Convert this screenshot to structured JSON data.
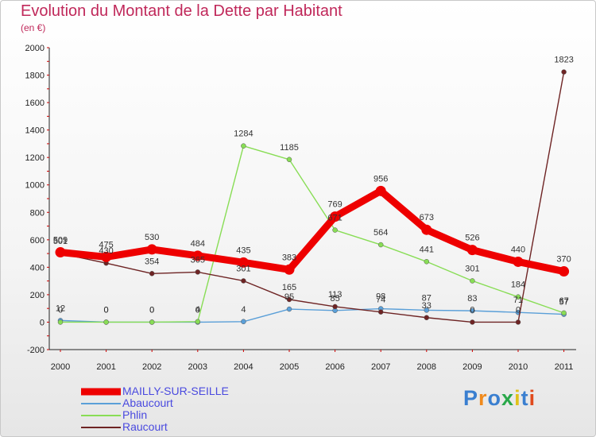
{
  "title": "Evolution du Montant de la Dette par Habitant",
  "subtitle": "(en €)",
  "logo": {
    "text": "Proxiti",
    "colors": [
      "#3a7fd0",
      "#f08a1c",
      "#3a7fd0",
      "#2aa84a",
      "#e0c21a",
      "#3a7fd0",
      "#e04a1c"
    ]
  },
  "chart_data": {
    "type": "line",
    "x": [
      "2000",
      "2001",
      "2002",
      "2003",
      "2004",
      "2005",
      "2006",
      "2007",
      "2008",
      "2009",
      "2010",
      "2011"
    ],
    "ylim": [
      -200,
      2000
    ],
    "yticks": [
      "-200",
      "0",
      "200",
      "400",
      "600",
      "800",
      "1000",
      "1200",
      "1400",
      "1600",
      "1800",
      "2000"
    ],
    "grid": false,
    "legend_position": "bottom-left",
    "series": [
      {
        "name": "MAILLY-SUR-SEILLE",
        "color": "#ee0000",
        "values": [
          509,
          475,
          530,
          484,
          435,
          383,
          769,
          956,
          673,
          526,
          440,
          370
        ],
        "labels": [
          "509",
          "475",
          "530",
          "484",
          "435",
          "383",
          "769",
          "956",
          "673",
          "526",
          "440",
          "370"
        ]
      },
      {
        "name": "Abaucourt",
        "color": "#5a9fd8",
        "values": [
          12,
          0,
          0,
          0,
          4,
          95,
          85,
          98,
          87,
          83,
          71,
          57
        ],
        "labels": [
          "12",
          "0",
          "0",
          "0",
          "4",
          "95",
          "85",
          "98",
          "87",
          "83",
          "71",
          "57"
        ]
      },
      {
        "name": "Phlin",
        "color": "#88dd55",
        "values": [
          0,
          0,
          0,
          4,
          1284,
          1185,
          671,
          564,
          441,
          301,
          184,
          67
        ],
        "labels": [
          "0",
          "0",
          "0",
          "4",
          "1284",
          "1185",
          "671",
          "564",
          "441",
          "301",
          "184",
          "67"
        ]
      },
      {
        "name": "Raucourt",
        "color": "#6e2424",
        "values": [
          501,
          430,
          354,
          365,
          301,
          165,
          113,
          74,
          33,
          0,
          0,
          1823
        ],
        "labels": [
          "501",
          "430",
          "354",
          "365",
          "301",
          "165",
          "113",
          "74",
          "33",
          "0",
          "0",
          "1823"
        ]
      }
    ]
  }
}
